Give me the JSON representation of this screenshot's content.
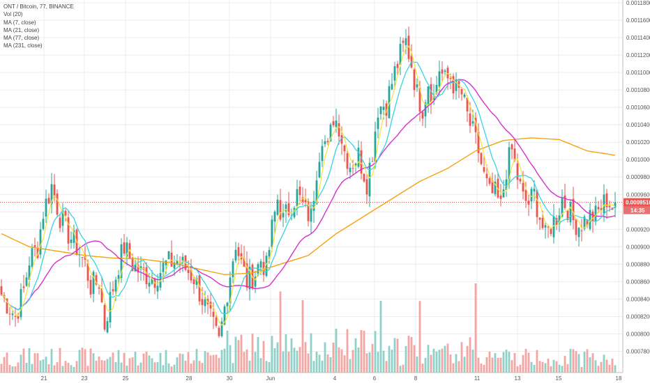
{
  "legend": {
    "title": "ONT / Bitcoin, 77, BINANCE",
    "vol": "Vol (20)",
    "ma7": "MA (7, close)",
    "ma21": "MA (21, close)",
    "ma77": "MA (77, close)",
    "ma231": "MA (231, close)"
  },
  "price_tag": {
    "price": "0.0009510",
    "countdown": "14:35"
  },
  "colors": {
    "up": "#26a69a",
    "down": "#ef5350",
    "vol_up": "#8fd1c9",
    "vol_down": "#f5a5a3",
    "ma7": "#f2e33a",
    "ma21": "#38d3e0",
    "ma77": "#d62fd0",
    "ma231": "#f5a20f",
    "price_line": "#ef5350",
    "grid": "#ececec",
    "axis_text": "#555555"
  },
  "chart_data": {
    "type": "candlestick",
    "symbol": "ONT / Bitcoin",
    "interval": "77",
    "exchange": "BINANCE",
    "ylim": [
      0.00077,
      0.00118
    ],
    "y_ticks": [
      "0.0011800",
      "0.0011600",
      "0.0011400",
      "0.0011200",
      "0.0011000",
      "0.0010800",
      "0.0010600",
      "0.0010400",
      "0.0010200",
      "0.0010000",
      "0.0009800",
      "0.0009600",
      "0.0009400",
      "0.0009200",
      "0.0009000",
      "0.0008800",
      "0.0008600",
      "0.0008400",
      "0.0008200",
      "0.0008000",
      "0.0007800"
    ],
    "x_labels": [
      "21",
      "23",
      "25",
      "28",
      "30",
      "Jun",
      "4",
      "6",
      "8",
      "11",
      "13",
      "15",
      "18"
    ],
    "last_price": 0.000951,
    "close_path": [
      {
        "i": 0,
        "v": 0.000845
      },
      {
        "i": 5,
        "v": 0.00082
      },
      {
        "i": 8,
        "v": 0.00085
      },
      {
        "i": 10,
        "v": 0.000885
      },
      {
        "i": 13,
        "v": 0.0009
      },
      {
        "i": 15,
        "v": 0.00094
      },
      {
        "i": 18,
        "v": 0.00097
      },
      {
        "i": 21,
        "v": 0.000935
      },
      {
        "i": 24,
        "v": 0.000915
      },
      {
        "i": 27,
        "v": 0.0009
      },
      {
        "i": 30,
        "v": 0.00088
      },
      {
        "i": 32,
        "v": 0.000855
      },
      {
        "i": 35,
        "v": 0.00086
      },
      {
        "i": 37,
        "v": 0.00081
      },
      {
        "i": 39,
        "v": 0.00084
      },
      {
        "i": 42,
        "v": 0.00088
      },
      {
        "i": 44,
        "v": 0.0009
      },
      {
        "i": 47,
        "v": 0.00088
      },
      {
        "i": 50,
        "v": 0.00087
      },
      {
        "i": 55,
        "v": 0.000865
      },
      {
        "i": 59,
        "v": 0.00088
      },
      {
        "i": 63,
        "v": 0.000885
      },
      {
        "i": 66,
        "v": 0.000875
      },
      {
        "i": 69,
        "v": 0.000865
      },
      {
        "i": 72,
        "v": 0.00084
      },
      {
        "i": 75,
        "v": 0.000815
      },
      {
        "i": 78,
        "v": 0.00079
      },
      {
        "i": 80,
        "v": 0.00083
      },
      {
        "i": 82,
        "v": 0.00087
      },
      {
        "i": 84,
        "v": 0.000905
      },
      {
        "i": 86,
        "v": 0.00088
      },
      {
        "i": 88,
        "v": 0.00086
      },
      {
        "i": 91,
        "v": 0.00087
      },
      {
        "i": 93,
        "v": 0.000885
      },
      {
        "i": 95,
        "v": 0.000875
      },
      {
        "i": 97,
        "v": 0.00092
      },
      {
        "i": 99,
        "v": 0.000955
      },
      {
        "i": 101,
        "v": 0.00093
      },
      {
        "i": 104,
        "v": 0.00095
      },
      {
        "i": 106,
        "v": 0.00096
      },
      {
        "i": 109,
        "v": 0.00094
      },
      {
        "i": 111,
        "v": 0.000935
      },
      {
        "i": 113,
        "v": 0.00099
      },
      {
        "i": 115,
        "v": 0.00103
      },
      {
        "i": 117,
        "v": 0.00101
      },
      {
        "i": 119,
        "v": 0.00105
      },
      {
        "i": 121,
        "v": 0.00104
      },
      {
        "i": 123,
        "v": 0.00101
      },
      {
        "i": 125,
        "v": 0.000995
      },
      {
        "i": 128,
        "v": 0.001005
      },
      {
        "i": 131,
        "v": 0.000975
      },
      {
        "i": 133,
        "v": 0.00101
      },
      {
        "i": 135,
        "v": 0.00106
      },
      {
        "i": 138,
        "v": 0.001065
      },
      {
        "i": 141,
        "v": 0.0011
      },
      {
        "i": 143,
        "v": 0.00112
      },
      {
        "i": 145,
        "v": 0.001135
      },
      {
        "i": 147,
        "v": 0.00111
      },
      {
        "i": 149,
        "v": 0.001075
      },
      {
        "i": 151,
        "v": 0.00106
      },
      {
        "i": 153,
        "v": 0.00109
      },
      {
        "i": 155,
        "v": 0.00107
      },
      {
        "i": 157,
        "v": 0.001105
      },
      {
        "i": 159,
        "v": 0.00109
      },
      {
        "i": 161,
        "v": 0.001095
      },
      {
        "i": 163,
        "v": 0.00108
      },
      {
        "i": 165,
        "v": 0.001075
      },
      {
        "i": 167,
        "v": 0.00105
      },
      {
        "i": 169,
        "v": 0.00103
      },
      {
        "i": 171,
        "v": 0.00101
      },
      {
        "i": 173,
        "v": 0.00098
      },
      {
        "i": 175,
        "v": 0.00096
      },
      {
        "i": 177,
        "v": 0.00096
      },
      {
        "i": 179,
        "v": 0.000945
      },
      {
        "i": 181,
        "v": 0.00099
      },
      {
        "i": 183,
        "v": 0.00101
      },
      {
        "i": 185,
        "v": 0.00098
      },
      {
        "i": 187,
        "v": 0.000955
      },
      {
        "i": 189,
        "v": 0.00095
      },
      {
        "i": 191,
        "v": 0.00096
      },
      {
        "i": 193,
        "v": 0.000935
      },
      {
        "i": 195,
        "v": 0.00091
      },
      {
        "i": 197,
        "v": 0.000925
      },
      {
        "i": 199,
        "v": 0.000935
      },
      {
        "i": 201,
        "v": 0.000955
      },
      {
        "i": 203,
        "v": 0.000945
      },
      {
        "i": 205,
        "v": 0.00093
      },
      {
        "i": 207,
        "v": 0.000925
      },
      {
        "i": 209,
        "v": 0.00093
      },
      {
        "i": 211,
        "v": 0.000935
      },
      {
        "i": 213,
        "v": 0.000935
      },
      {
        "i": 215,
        "v": 0.000945
      },
      {
        "i": 217,
        "v": 0.000955
      },
      {
        "i": 219,
        "v": 0.000945
      },
      {
        "i": 220,
        "v": 0.000951
      }
    ],
    "ma231_path": [
      {
        "i": 0,
        "v": 0.000915
      },
      {
        "i": 10,
        "v": 0.0009
      },
      {
        "i": 20,
        "v": 0.000895
      },
      {
        "i": 30,
        "v": 0.00089
      },
      {
        "i": 40,
        "v": 0.000887
      },
      {
        "i": 50,
        "v": 0.000886
      },
      {
        "i": 60,
        "v": 0.000882
      },
      {
        "i": 70,
        "v": 0.000875
      },
      {
        "i": 80,
        "v": 0.000868
      },
      {
        "i": 90,
        "v": 0.00087
      },
      {
        "i": 100,
        "v": 0.00088
      },
      {
        "i": 110,
        "v": 0.00089
      },
      {
        "i": 120,
        "v": 0.000915
      },
      {
        "i": 130,
        "v": 0.000935
      },
      {
        "i": 140,
        "v": 0.000955
      },
      {
        "i": 150,
        "v": 0.000975
      },
      {
        "i": 160,
        "v": 0.00099
      },
      {
        "i": 170,
        "v": 0.00101
      },
      {
        "i": 180,
        "v": 0.001022
      },
      {
        "i": 190,
        "v": 0.001025
      },
      {
        "i": 200,
        "v": 0.001023
      },
      {
        "i": 210,
        "v": 0.00101
      },
      {
        "i": 220,
        "v": 0.001005
      }
    ],
    "volume_scale": "relative"
  }
}
